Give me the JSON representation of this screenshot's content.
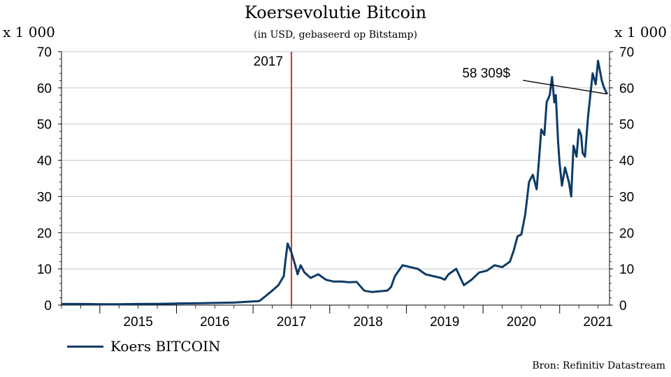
{
  "title": "Koersevolutie Bitcoin",
  "subtitle": "(in USD, gebaseerd op Bitstamp)",
  "unit_left": "x 1 000",
  "unit_right": "x 1 000",
  "legend_label": "Koers BITCOIN",
  "source": "Bron: Refinitiv Datastream",
  "colors": {
    "series": "#0d3b66",
    "vline": "#c0392b",
    "grid": "#c8c8c8"
  },
  "chart_data": {
    "type": "line",
    "title": "Koersevolutie Bitcoin",
    "subtitle": "(in USD, gebaseerd op Bitstamp)",
    "ylabel": "x 1 000",
    "ylim": [
      0,
      70
    ],
    "yticks": [
      0,
      10,
      20,
      30,
      40,
      50,
      60,
      70
    ],
    "xlim": [
      2014.5,
      2021.65
    ],
    "xtick_labels": [
      "2015",
      "2016",
      "2017",
      "2018",
      "2019",
      "2020",
      "2021"
    ],
    "grid": true,
    "legend_position": "bottom-left",
    "vline": {
      "x": 2017.5,
      "label": "2017"
    },
    "annotation": {
      "text": "58 309$",
      "x": 2021.62,
      "y": 58.3
    },
    "series": [
      {
        "name": "Koers BITCOIN",
        "x": [
          2014.5,
          2014.75,
          2015.0,
          2015.25,
          2015.5,
          2015.75,
          2016.0,
          2016.25,
          2016.5,
          2016.75,
          2017.0,
          2017.08,
          2017.17,
          2017.25,
          2017.33,
          2017.4,
          2017.42,
          2017.45,
          2017.5,
          2017.55,
          2017.58,
          2017.62,
          2017.67,
          2017.75,
          2017.85,
          2017.95,
          2018.05,
          2018.15,
          2018.25,
          2018.35,
          2018.45,
          2018.55,
          2018.65,
          2018.75,
          2018.8,
          2018.85,
          2018.95,
          2019.05,
          2019.15,
          2019.25,
          2019.35,
          2019.45,
          2019.5,
          2019.55,
          2019.65,
          2019.75,
          2019.85,
          2019.95,
          2020.05,
          2020.15,
          2020.25,
          2020.35,
          2020.4,
          2020.45,
          2020.5,
          2020.55,
          2020.6,
          2020.65,
          2020.7,
          2020.73,
          2020.76,
          2020.8,
          2020.83,
          2020.87,
          2020.9,
          2020.93,
          2020.95,
          2020.98,
          2021.0,
          2021.03,
          2021.07,
          2021.12,
          2021.15,
          2021.18,
          2021.22,
          2021.25,
          2021.28,
          2021.3,
          2021.33,
          2021.37,
          2021.4,
          2021.43,
          2021.47,
          2021.5,
          2021.55,
          2021.58,
          2021.62
        ],
        "values": [
          0.3,
          0.3,
          0.25,
          0.25,
          0.3,
          0.35,
          0.45,
          0.5,
          0.6,
          0.7,
          1.0,
          1.1,
          2.6,
          4.0,
          5.5,
          8.0,
          12.0,
          17.0,
          14.5,
          11.0,
          8.5,
          11.0,
          9.0,
          7.5,
          8.5,
          7.0,
          6.5,
          6.5,
          6.3,
          6.4,
          4.0,
          3.6,
          3.8,
          4.0,
          5.0,
          8.0,
          11.0,
          10.5,
          10.0,
          8.5,
          8.0,
          7.5,
          7.0,
          8.5,
          10.0,
          5.5,
          7.0,
          9.0,
          9.5,
          11.0,
          10.5,
          12.0,
          15.0,
          19.0,
          19.5,
          25.0,
          34.0,
          36.0,
          32.0,
          40.0,
          48.5,
          47.0,
          56.0,
          58.0,
          63.0,
          56.0,
          58.0,
          45.0,
          39.0,
          33.0,
          38.0,
          34.0,
          30.0,
          44.0,
          41.0,
          48.5,
          47.0,
          42.0,
          41.0,
          52.0,
          58.0,
          64.0,
          61.0,
          67.5,
          62.0,
          60.0,
          58.3
        ]
      }
    ]
  }
}
